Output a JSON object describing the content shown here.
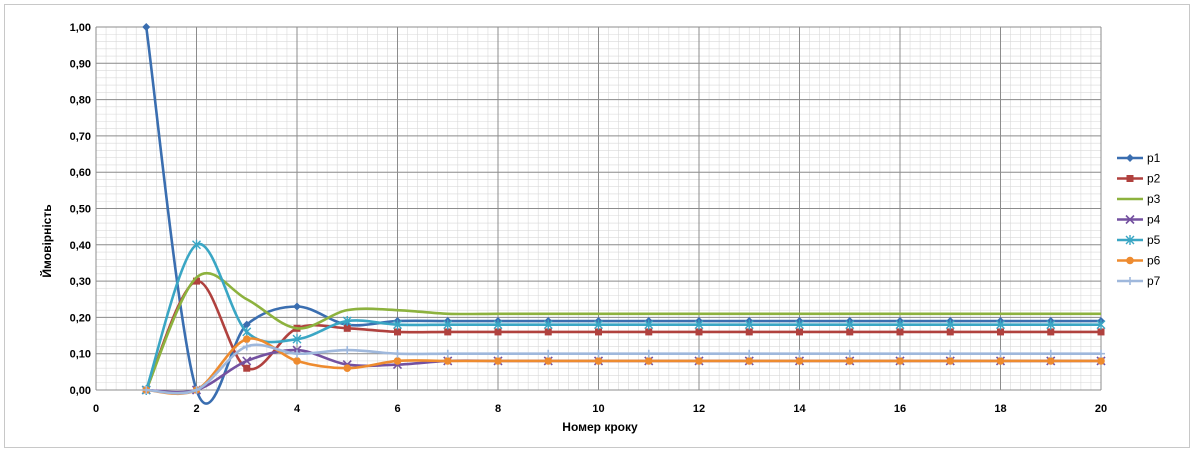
{
  "chart_data": {
    "type": "line",
    "title": "",
    "xlabel": "Номер кроку",
    "ylabel": "Ймовірність",
    "xlim": [
      0,
      20
    ],
    "ylim": [
      0,
      1
    ],
    "grid": true,
    "smooth": true,
    "legend_position": "right",
    "x_ticks": [
      "0",
      "2",
      "4",
      "6",
      "8",
      "10",
      "12",
      "14",
      "16",
      "18",
      "20"
    ],
    "y_ticks": [
      "0,00",
      "0,10",
      "0,20",
      "0,30",
      "0,40",
      "0,50",
      "0,60",
      "0,70",
      "0,80",
      "0,90",
      "1,00"
    ],
    "x": [
      1,
      2,
      3,
      4,
      5,
      6,
      7,
      8,
      9,
      10,
      11,
      12,
      13,
      14,
      15,
      16,
      17,
      18,
      19,
      20
    ],
    "series": [
      {
        "name": "p1",
        "color": "#3a6eb0",
        "marker": "diamond",
        "values": [
          1.0,
          0.0,
          0.18,
          0.23,
          0.18,
          0.19,
          0.19,
          0.19,
          0.19,
          0.19,
          0.19,
          0.19,
          0.19,
          0.19,
          0.19,
          0.19,
          0.19,
          0.19,
          0.19,
          0.19
        ]
      },
      {
        "name": "p2",
        "color": "#b0413e",
        "marker": "square",
        "values": [
          0.0,
          0.3,
          0.06,
          0.17,
          0.17,
          0.16,
          0.16,
          0.16,
          0.16,
          0.16,
          0.16,
          0.16,
          0.16,
          0.16,
          0.16,
          0.16,
          0.16,
          0.16,
          0.16,
          0.16
        ]
      },
      {
        "name": "p3",
        "color": "#8db23e",
        "marker": "none",
        "values": [
          0.0,
          0.31,
          0.25,
          0.17,
          0.22,
          0.22,
          0.21,
          0.21,
          0.21,
          0.21,
          0.21,
          0.21,
          0.21,
          0.21,
          0.21,
          0.21,
          0.21,
          0.21,
          0.21,
          0.21
        ]
      },
      {
        "name": "p4",
        "color": "#7451a0",
        "marker": "x",
        "values": [
          0.0,
          0.0,
          0.08,
          0.11,
          0.07,
          0.07,
          0.08,
          0.08,
          0.08,
          0.08,
          0.08,
          0.08,
          0.08,
          0.08,
          0.08,
          0.08,
          0.08,
          0.08,
          0.08,
          0.08
        ]
      },
      {
        "name": "p5",
        "color": "#3aa6c4",
        "marker": "star",
        "values": [
          0.0,
          0.4,
          0.16,
          0.14,
          0.19,
          0.18,
          0.18,
          0.18,
          0.18,
          0.18,
          0.18,
          0.18,
          0.18,
          0.18,
          0.18,
          0.18,
          0.18,
          0.18,
          0.18,
          0.18
        ]
      },
      {
        "name": "p6",
        "color": "#ee8b2f",
        "marker": "circle",
        "values": [
          0.0,
          0.0,
          0.14,
          0.08,
          0.06,
          0.08,
          0.08,
          0.08,
          0.08,
          0.08,
          0.08,
          0.08,
          0.08,
          0.08,
          0.08,
          0.08,
          0.08,
          0.08,
          0.08,
          0.08
        ]
      },
      {
        "name": "p7",
        "color": "#9fb8dc",
        "marker": "plus",
        "values": [
          0.0,
          0.0,
          0.12,
          0.1,
          0.11,
          0.1,
          0.1,
          0.1,
          0.1,
          0.1,
          0.1,
          0.1,
          0.1,
          0.1,
          0.1,
          0.1,
          0.1,
          0.1,
          0.1,
          0.1
        ]
      }
    ]
  }
}
